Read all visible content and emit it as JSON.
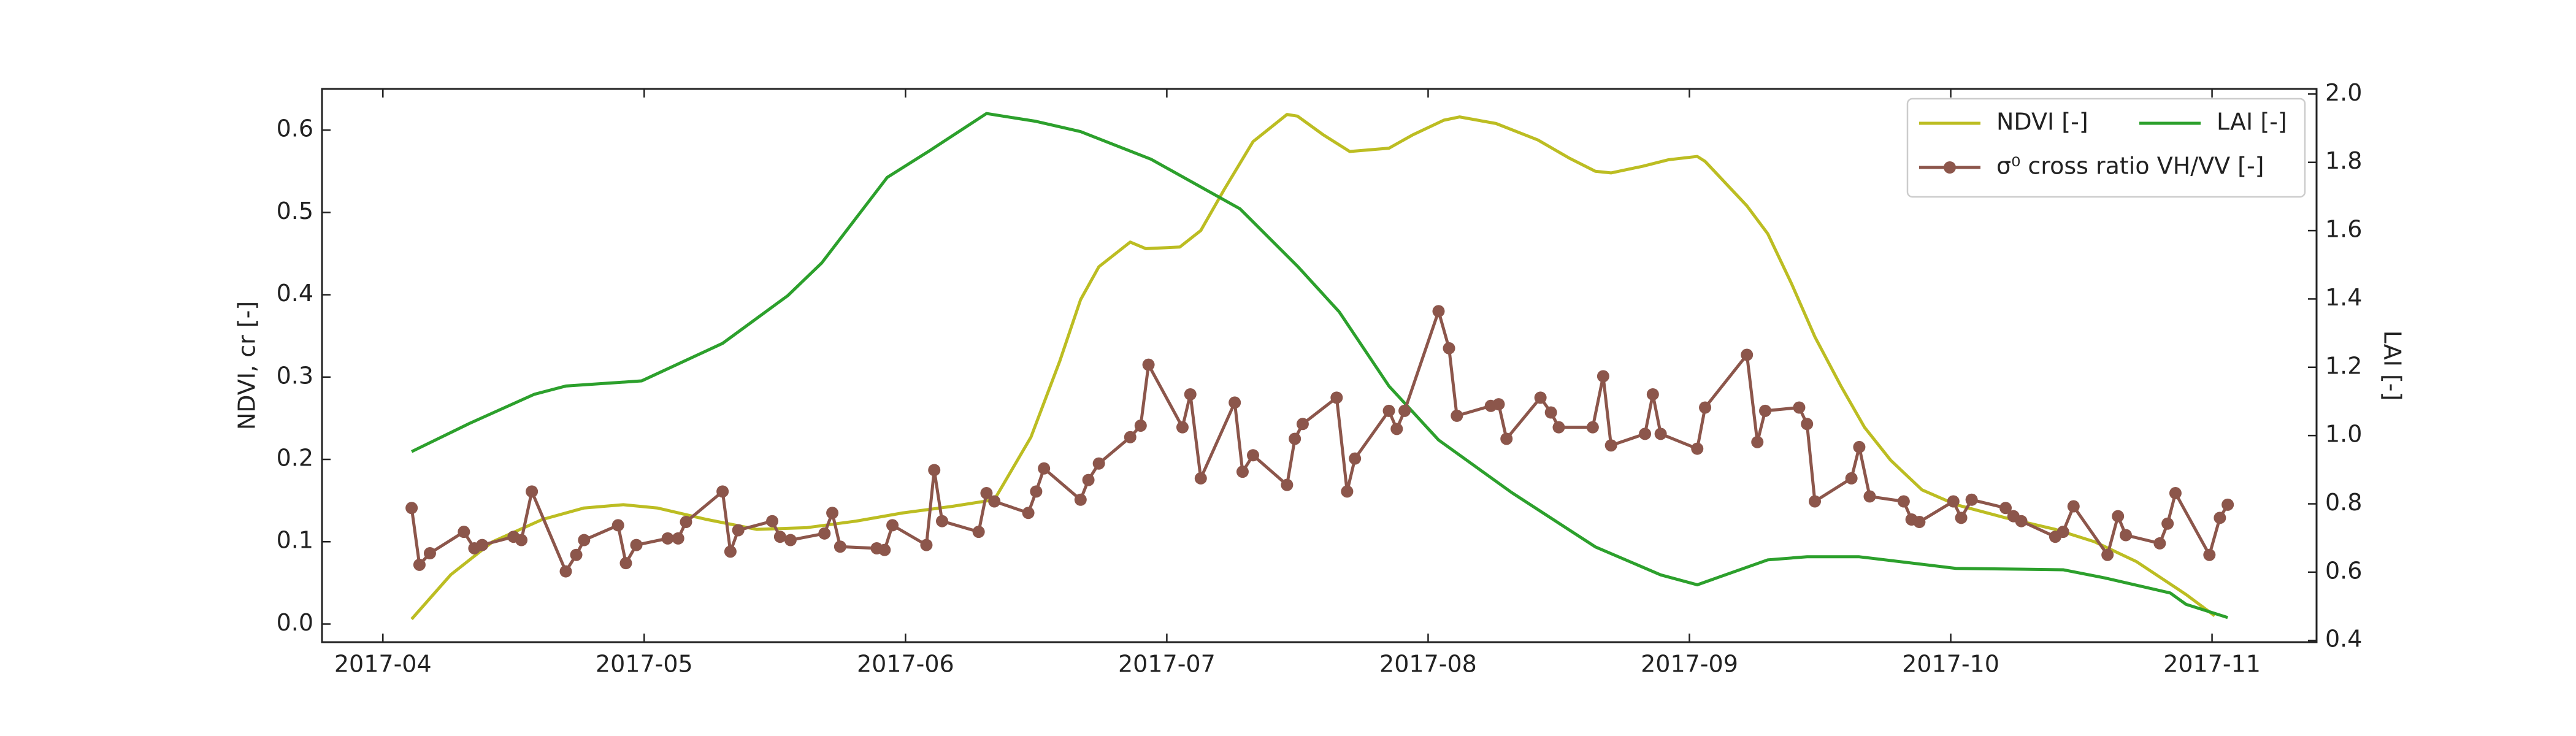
{
  "chart_data": {
    "type": "line",
    "ylabel": "NDVI, cr [-]",
    "y2label": "LAI [-]",
    "xlim": [
      3.767,
      11.4
    ],
    "ylim": [
      -0.022,
      0.65
    ],
    "y2lim": [
      0.395,
      2.015
    ],
    "xticks": [
      {
        "value": 4,
        "label": "2017-04"
      },
      {
        "value": 5,
        "label": "2017-05"
      },
      {
        "value": 6,
        "label": "2017-06"
      },
      {
        "value": 7,
        "label": "2017-07"
      },
      {
        "value": 8,
        "label": "2017-08"
      },
      {
        "value": 9,
        "label": "2017-09"
      },
      {
        "value": 10,
        "label": "2017-10"
      },
      {
        "value": 11,
        "label": "2017-11"
      }
    ],
    "yticks": [
      {
        "value": 0,
        "label": "0.0"
      },
      0.1,
      0.2,
      0.3,
      0.4,
      0.5,
      0.6
    ],
    "y2ticks": [
      0.4,
      0.6,
      0.8,
      1.2,
      1.4,
      1.6,
      1.8,
      {
        "value": 2,
        "label": "2.0"
      },
      {
        "value": 1,
        "label": "1.0"
      }
    ],
    "legend": "upper right",
    "series": [
      {
        "name": "NDVI [-]",
        "color": "#bcbd22",
        "marker": false,
        "x": [
          4.11,
          4.26,
          4.42,
          4.61,
          4.77,
          4.92,
          5.05,
          5.24,
          5.43,
          5.62,
          5.81,
          5.99,
          6.18,
          6.34,
          6.48,
          6.59,
          6.67,
          6.74,
          6.86,
          6.92,
          7.05,
          7.13,
          7.22,
          7.33,
          7.46,
          7.5,
          7.6,
          7.7,
          7.85,
          7.94,
          8.06,
          8.12,
          8.26,
          8.42,
          8.54,
          8.64,
          8.7,
          8.82,
          8.92,
          9.03,
          9.06,
          9.22,
          9.3,
          9.39,
          9.48,
          9.58,
          9.67,
          9.77,
          9.89,
          10.02,
          10.21,
          10.4,
          10.55,
          10.71,
          10.9,
          11.01
        ],
        "values": [
          0.006,
          0.06,
          0.1,
          0.127,
          0.141,
          0.145,
          0.141,
          0.127,
          0.115,
          0.117,
          0.125,
          0.135,
          0.143,
          0.151,
          0.227,
          0.319,
          0.394,
          0.434,
          0.464,
          0.456,
          0.458,
          0.478,
          0.528,
          0.586,
          0.619,
          0.617,
          0.594,
          0.574,
          0.578,
          0.594,
          0.612,
          0.616,
          0.608,
          0.588,
          0.566,
          0.55,
          0.548,
          0.556,
          0.564,
          0.568,
          0.562,
          0.508,
          0.474,
          0.414,
          0.349,
          0.289,
          0.239,
          0.199,
          0.163,
          0.145,
          0.129,
          0.115,
          0.1,
          0.076,
          0.036,
          0.01
        ]
      },
      {
        "name": "LAI [-]",
        "color": "#2ca02c",
        "marker": false,
        "axis": "y2",
        "x": [
          4.11,
          4.33,
          4.58,
          4.7,
          4.99,
          5.3,
          5.55,
          5.68,
          5.93,
          6.09,
          6.31,
          6.5,
          6.67,
          6.94,
          7.28,
          7.5,
          7.66,
          7.85,
          8.04,
          8.32,
          8.64,
          8.89,
          9.03,
          9.3,
          9.45,
          9.65,
          10.02,
          10.43,
          10.59,
          10.84,
          10.9,
          11.06
        ],
        "values": [
          0.953,
          1.035,
          1.121,
          1.145,
          1.16,
          1.27,
          1.41,
          1.506,
          1.756,
          1.833,
          1.943,
          1.92,
          1.89,
          1.809,
          1.664,
          1.496,
          1.362,
          1.145,
          0.987,
          0.833,
          0.674,
          0.592,
          0.563,
          0.636,
          0.645,
          0.645,
          0.611,
          0.607,
          0.583,
          0.539,
          0.506,
          0.467
        ]
      },
      {
        "name": "σ⁰ cross ratio VH/VV [-]",
        "color": "#8c564b",
        "marker": true,
        "x": [
          4.11,
          4.14,
          4.18,
          4.31,
          4.35,
          4.38,
          4.5,
          4.53,
          4.57,
          4.7,
          4.74,
          4.77,
          4.9,
          4.93,
          4.97,
          5.09,
          5.13,
          5.16,
          5.3,
          5.33,
          5.36,
          5.49,
          5.52,
          5.56,
          5.69,
          5.72,
          5.75,
          5.89,
          5.92,
          5.95,
          6.08,
          6.11,
          6.14,
          6.28,
          6.31,
          6.34,
          6.47,
          6.5,
          6.53,
          6.67,
          6.7,
          6.74,
          6.86,
          6.9,
          6.93,
          7.06,
          7.09,
          7.13,
          7.26,
          7.29,
          7.33,
          7.46,
          7.49,
          7.52,
          7.65,
          7.69,
          7.72,
          7.85,
          7.88,
          7.91,
          8.04,
          8.08,
          8.11,
          8.24,
          8.27,
          8.3,
          8.43,
          8.47,
          8.5,
          8.63,
          8.67,
          8.7,
          8.83,
          8.86,
          8.89,
          9.03,
          9.06,
          9.22,
          9.26,
          9.29,
          9.42,
          9.45,
          9.48,
          9.62,
          9.65,
          9.69,
          9.82,
          9.85,
          9.88,
          10.01,
          10.04,
          10.08,
          10.21,
          10.24,
          10.27,
          10.4,
          10.43,
          10.47,
          10.6,
          10.64,
          10.67,
          10.8,
          10.83,
          10.86,
          10.99,
          11.03,
          11.06
        ],
        "values": [
          0.141,
          0.072,
          0.086,
          0.112,
          0.092,
          0.096,
          0.106,
          0.102,
          0.161,
          0.064,
          0.084,
          0.102,
          0.12,
          0.074,
          0.096,
          0.104,
          0.104,
          0.124,
          0.161,
          0.088,
          0.114,
          0.125,
          0.106,
          0.102,
          0.11,
          0.135,
          0.094,
          0.092,
          0.09,
          0.12,
          0.096,
          0.187,
          0.125,
          0.112,
          0.159,
          0.149,
          0.135,
          0.161,
          0.189,
          0.151,
          0.175,
          0.195,
          0.227,
          0.241,
          0.315,
          0.239,
          0.279,
          0.177,
          0.269,
          0.185,
          0.205,
          0.169,
          0.225,
          0.243,
          0.275,
          0.161,
          0.201,
          0.259,
          0.237,
          0.259,
          0.38,
          0.335,
          0.253,
          0.265,
          0.267,
          0.225,
          0.275,
          0.257,
          0.239,
          0.239,
          0.301,
          0.217,
          0.231,
          0.279,
          0.231,
          0.213,
          0.263,
          0.327,
          0.221,
          0.259,
          0.263,
          0.243,
          0.149,
          0.177,
          0.215,
          0.155,
          0.149,
          0.127,
          0.124,
          0.149,
          0.129,
          0.151,
          0.141,
          0.131,
          0.125,
          0.106,
          0.112,
          0.143,
          0.084,
          0.131,
          0.108,
          0.098,
          0.122,
          0.159,
          0.084,
          0.129,
          0.145
        ]
      }
    ]
  }
}
